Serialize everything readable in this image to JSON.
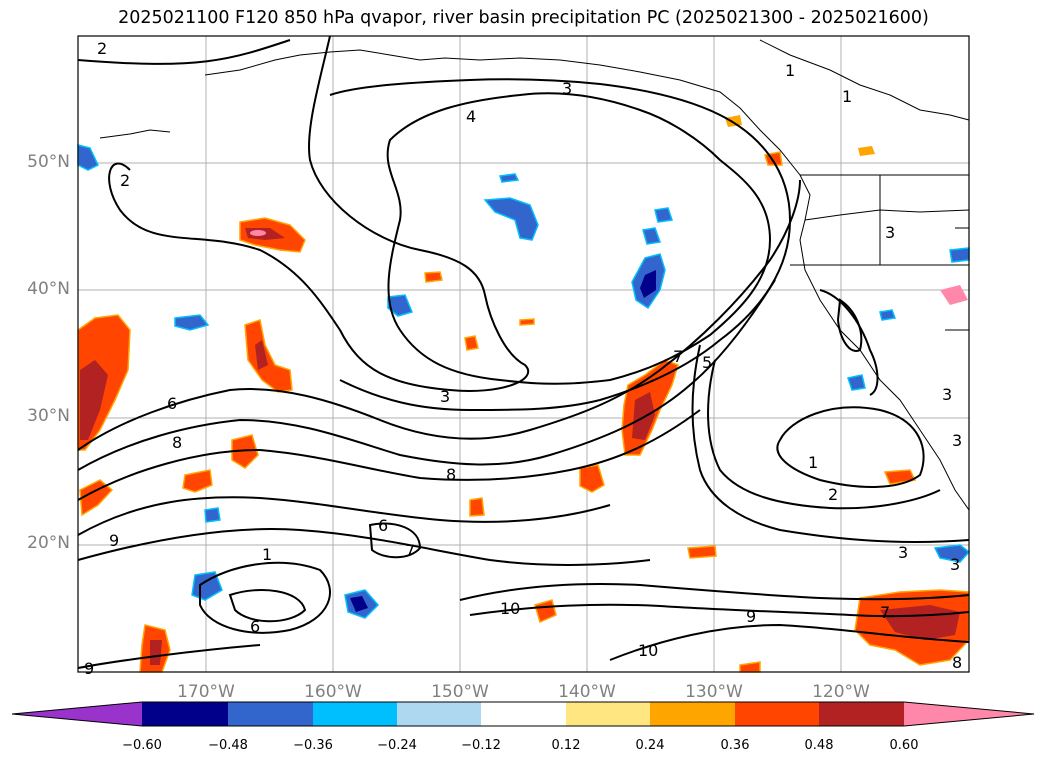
{
  "title": "2025021100 F120 850 hPa qvapor, river basin precipitation PC (2025021300 - 2025021600)",
  "lat_labels": [
    "50°N",
    "40°N",
    "30°N",
    "20°N"
  ],
  "lon_labels": [
    "170°W",
    "160°W",
    "150°W",
    "140°W",
    "130°W",
    "120°W"
  ],
  "contour_labels": [
    "2",
    "2",
    "3",
    "4",
    "1",
    "1",
    "3",
    "7",
    "5",
    "3",
    "3",
    "6",
    "8",
    "8",
    "9",
    "6",
    "1",
    "7",
    "6",
    "10",
    "10",
    "9",
    "7",
    "1",
    "2",
    "3",
    "3",
    "3",
    "9",
    "8"
  ],
  "colorbar": {
    "ticks": [
      "−0.60",
      "−0.48",
      "−0.36",
      "−0.24",
      "−0.12",
      "0.12",
      "0.24",
      "0.36",
      "0.48",
      "0.60"
    ],
    "colors": [
      "#9933cc",
      "#00008b",
      "#3366cc",
      "#00bfff",
      "#add8f0",
      "#ffffff",
      "#ffe680",
      "#ffa500",
      "#ff4500",
      "#b22222",
      "#ff88aa"
    ]
  },
  "colors": {
    "grid": "#b0b0b0",
    "contour": "#000000",
    "coast": "#000000",
    "axis_label": "#808080"
  }
}
